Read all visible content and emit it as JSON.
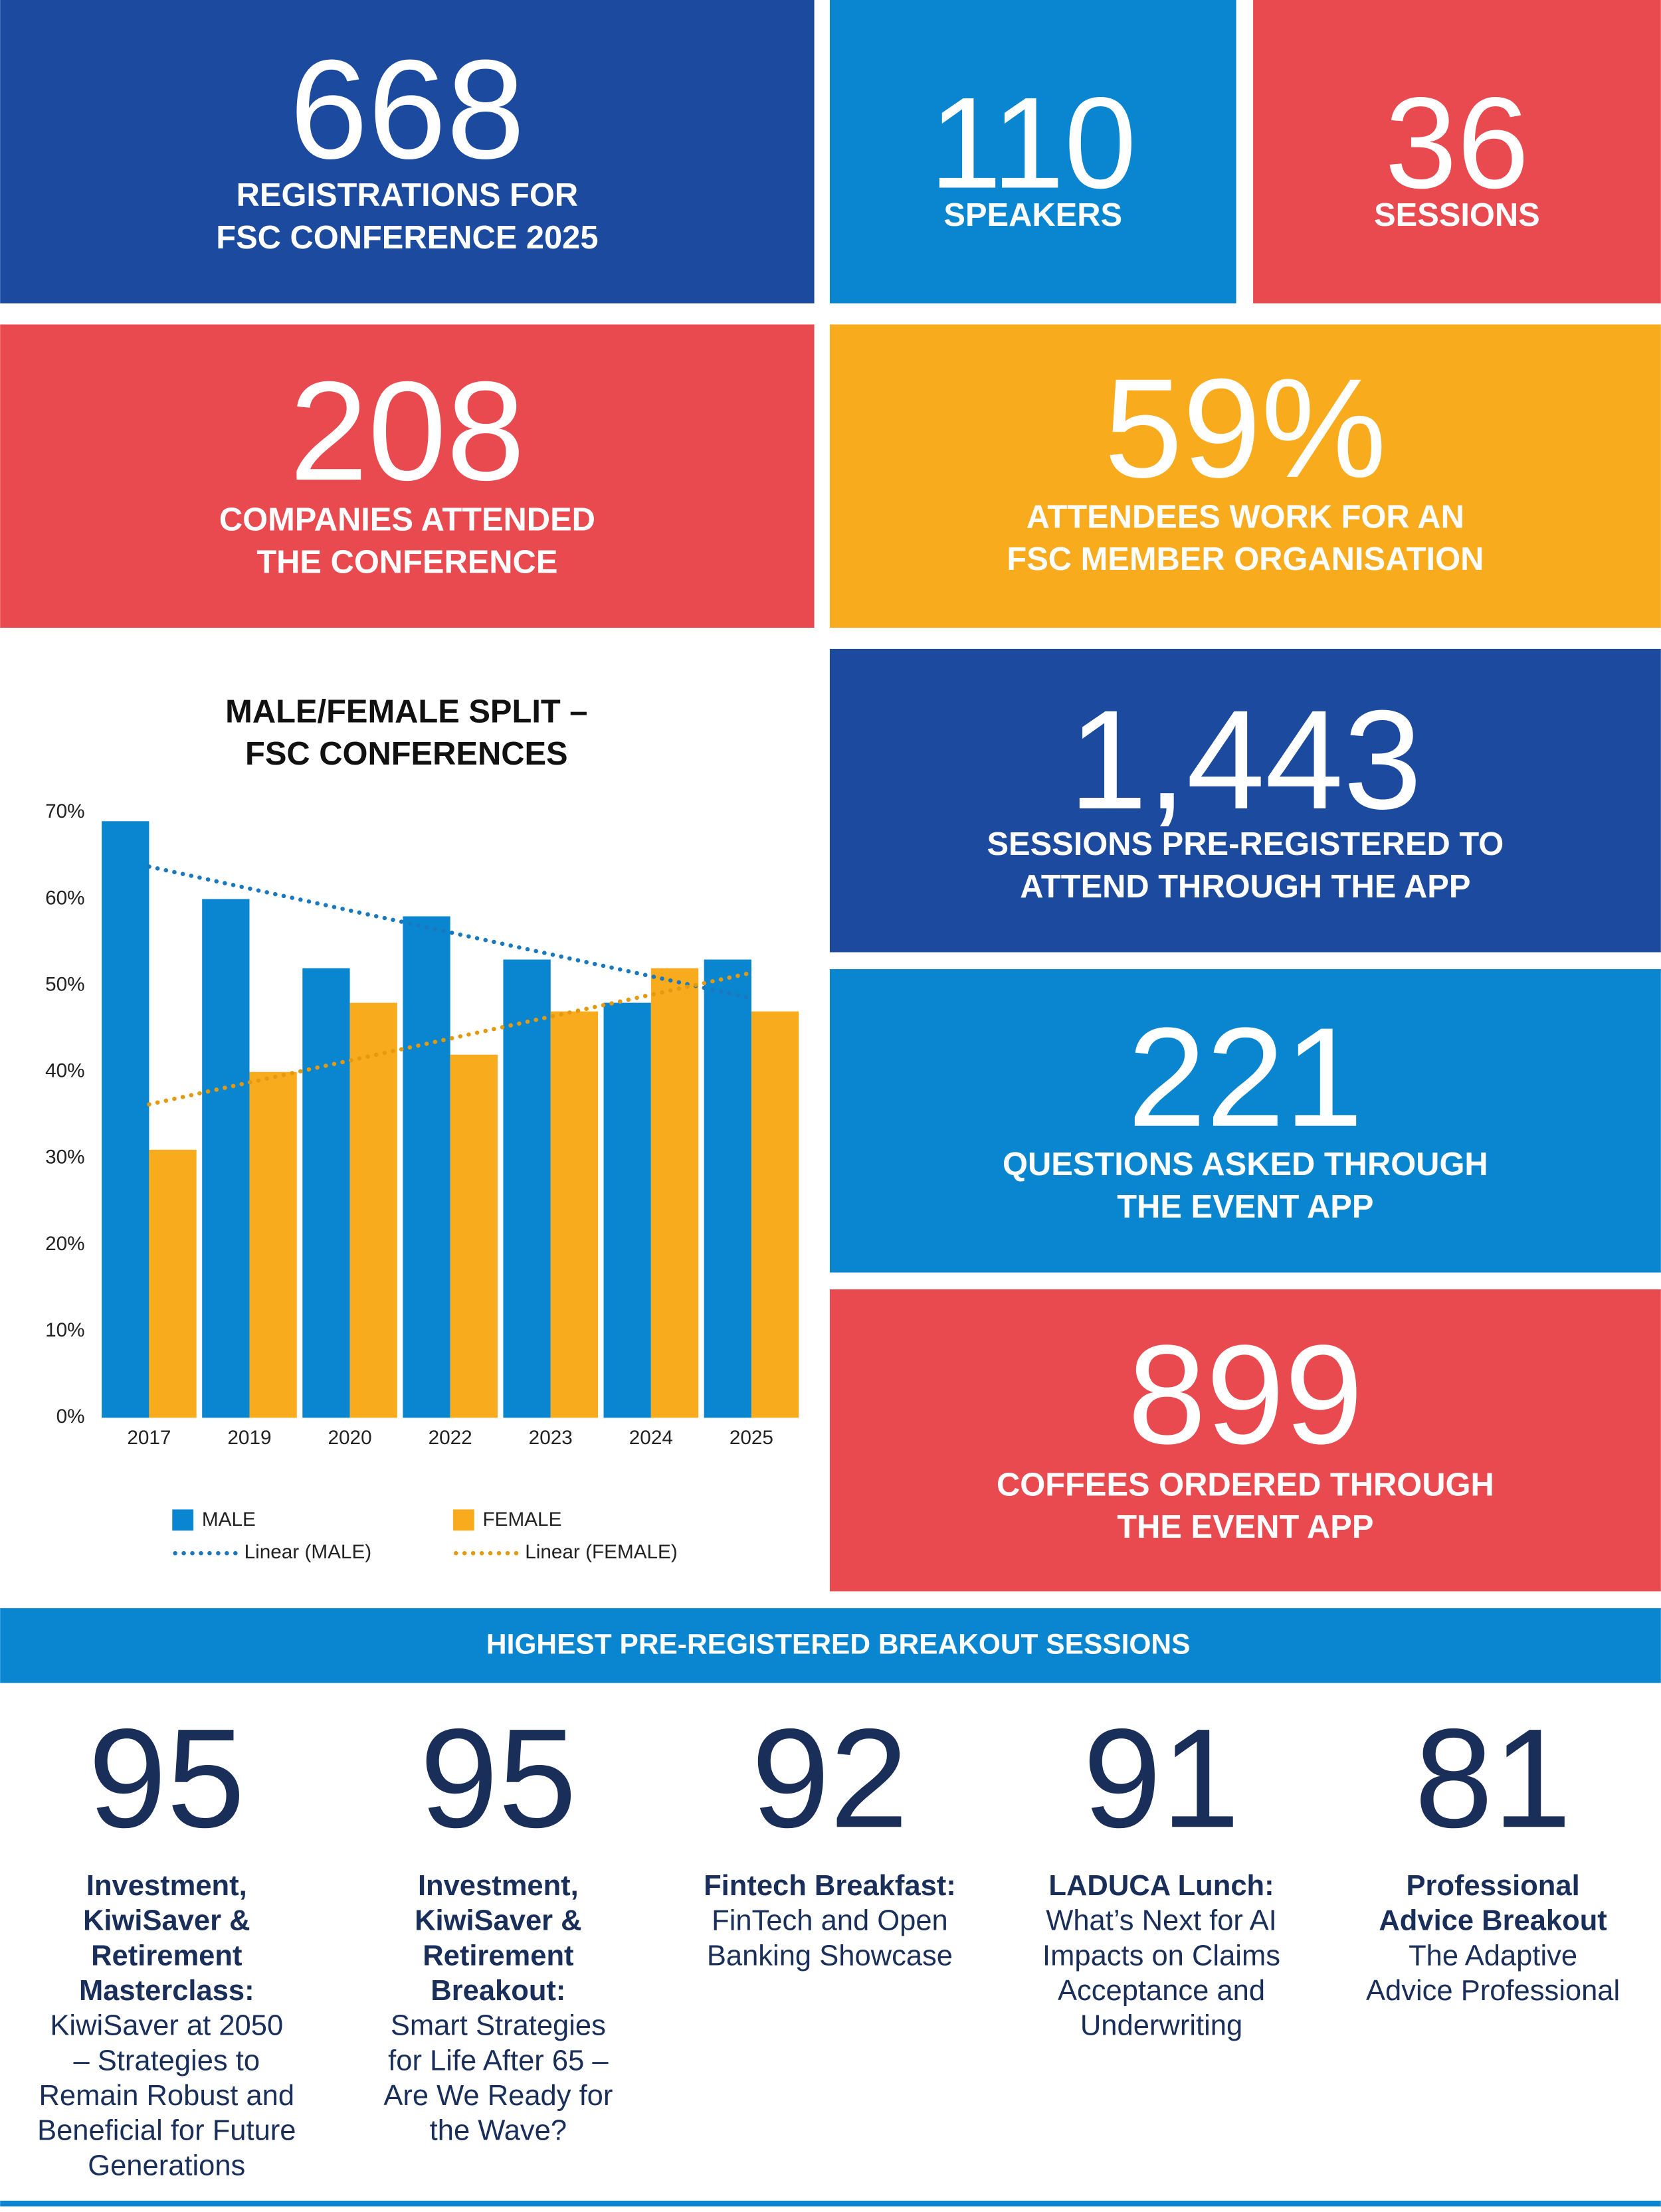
{
  "stats": [
    {
      "number": "668",
      "lines": [
        "REGISTRATIONS FOR",
        "FSC CONFERENCE 2025"
      ]
    },
    {
      "number": "110",
      "lines": [
        "SPEAKERS"
      ]
    },
    {
      "number": "36",
      "lines": [
        "SESSIONS"
      ]
    },
    {
      "number": "208",
      "lines": [
        "COMPANIES ATTENDED",
        "THE CONFERENCE"
      ]
    },
    {
      "number": "59%",
      "lines": [
        "ATTENDEES WORK FOR AN",
        "FSC MEMBER ORGANISATION"
      ]
    },
    {
      "number": "1,443",
      "lines": [
        "SESSIONS PRE-REGISTERED TO",
        "ATTEND THROUGH THE APP"
      ]
    },
    {
      "number": "221",
      "lines": [
        "QUESTIONS ASKED THROUGH",
        "THE EVENT APP"
      ]
    },
    {
      "number": "899",
      "lines": [
        "COFFEES ORDERED THROUGH",
        "THE EVENT APP"
      ]
    }
  ],
  "chart_data": {
    "type": "bar",
    "title": [
      "MALE/FEMALE SPLIT –",
      "FSC CONFERENCES"
    ],
    "categories": [
      "2017",
      "2019",
      "2020",
      "2022",
      "2023",
      "2024",
      "2025"
    ],
    "series": [
      {
        "name": "MALE",
        "color": "#0a86d0",
        "values": [
          69,
          60,
          52,
          58,
          53,
          48,
          53
        ],
        "trendline": "Linear (MALE)"
      },
      {
        "name": "FEMALE",
        "color": "#f9ab1e",
        "values": [
          31,
          40,
          48,
          42,
          47,
          52,
          47
        ],
        "trendline": "Linear (FEMALE)"
      }
    ],
    "ylim": [
      0,
      70
    ],
    "yticks": [
      {
        "value": 0,
        "label": "0%"
      },
      {
        "value": 10,
        "label": "10%"
      },
      {
        "value": 20,
        "label": "20%"
      },
      {
        "value": 30,
        "label": "30%"
      },
      {
        "value": 40,
        "label": "40%"
      },
      {
        "value": 50,
        "label": "50%"
      },
      {
        "value": 60,
        "label": "60%"
      },
      {
        "value": 70,
        "label": "70%"
      }
    ],
    "grid": false
  },
  "banner": "HIGHEST PRE-REGISTERED BREAKOUT SESSIONS",
  "sessions": [
    {
      "number": "95",
      "title": [
        "Investment,",
        "KiwiSaver &",
        "Retirement",
        "Masterclass:"
      ],
      "description": [
        "KiwiSaver at 2050",
        "– Strategies to",
        "Remain Robust and",
        "Beneficial for Future",
        "Generations"
      ]
    },
    {
      "number": "95",
      "title": [
        "Investment,",
        "KiwiSaver &",
        "Retirement",
        "Breakout:"
      ],
      "description": [
        "Smart Strategies",
        "for Life After 65 –",
        "Are We Ready for",
        "the Wave?"
      ]
    },
    {
      "number": "92",
      "title": [
        "Fintech Breakfast:"
      ],
      "description": [
        "FinTech and Open",
        "Banking Showcase"
      ]
    },
    {
      "number": "91",
      "title": [
        "LADUCA Lunch:"
      ],
      "description": [
        "What’s Next for AI",
        "Impacts on Claims",
        "Acceptance and",
        "Underwriting"
      ]
    },
    {
      "number": "81",
      "title": [
        "Professional",
        "Advice Breakout"
      ],
      "description": [
        "The Adaptive",
        "Advice Professional"
      ]
    }
  ]
}
